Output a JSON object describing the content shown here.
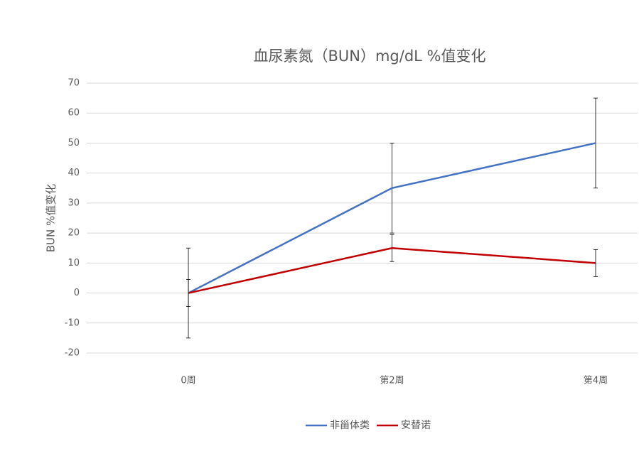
{
  "chart_data": {
    "type": "line",
    "title": "血尿素氮（BUN）mg/dL %值变化",
    "y_label": "BUN %值变化",
    "categories": [
      "0周",
      "第2周",
      "第4周"
    ],
    "series": [
      {
        "name": "非甾体类",
        "color": "#4472c4",
        "values": [
          0,
          35,
          50
        ],
        "errors": [
          15,
          15,
          15
        ]
      },
      {
        "name": "安替诺",
        "color": "#c00000",
        "values": [
          0,
          15,
          10
        ],
        "errors": [
          4.5,
          4.5,
          4.5
        ]
      }
    ],
    "ylim": [
      -20,
      70
    ],
    "yticks": [
      -20,
      -10,
      0,
      10,
      20,
      30,
      40,
      50,
      60,
      70
    ],
    "grid": true,
    "legend": "bottom"
  }
}
